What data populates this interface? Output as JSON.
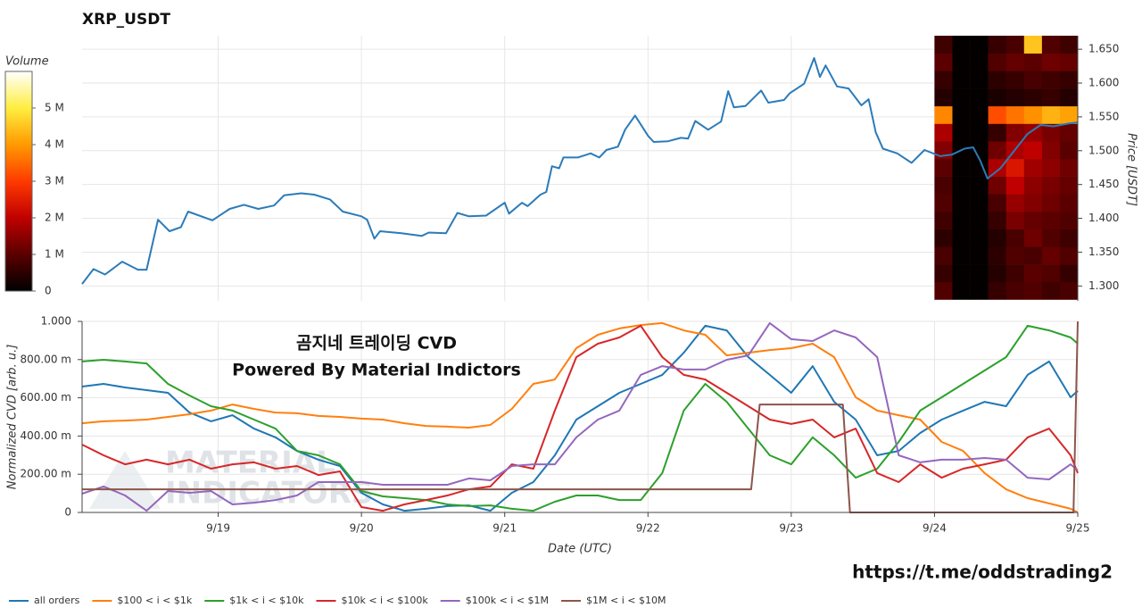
{
  "title": "XRP_USDT",
  "link": "https://t.me/oddstrading2",
  "chart_data": [
    {
      "type": "heatmap",
      "title": "Volume",
      "colorscale": [
        "#000000",
        "#5a0000",
        "#c00000",
        "#ff3a00",
        "#ff9a00",
        "#ffee40",
        "#ffffff"
      ],
      "clim": [
        0,
        6000000
      ],
      "cticks": [
        0,
        {
          "value": 1000000,
          "label": "1 M"
        },
        {
          "value": 2000000,
          "label": "2 M"
        },
        {
          "value": 3000000,
          "label": "3 M"
        },
        {
          "value": 4000000,
          "label": "4 M"
        },
        {
          "value": 5000000,
          "label": "5 M"
        }
      ],
      "x_edges": [
        6.0,
        6.125,
        6.25,
        6.375,
        6.5,
        6.625,
        6.75,
        6.875,
        7.0
      ],
      "y_edges": [
        1.28,
        1.306,
        1.332,
        1.358,
        1.384,
        1.41,
        1.436,
        1.462,
        1.488,
        1.514,
        1.54,
        1.566,
        1.592,
        1.618,
        1.644,
        1.67
      ],
      "values": [
        [
          900000,
          50000,
          50000,
          600000,
          800000,
          900000,
          700000,
          800000
        ],
        [
          600000,
          50000,
          50000,
          400000,
          700000,
          1000000,
          900000,
          600000
        ],
        [
          800000,
          50000,
          50000,
          500000,
          900000,
          800000,
          1100000,
          900000
        ],
        [
          500000,
          50000,
          50000,
          400000,
          800000,
          1200000,
          900000,
          700000
        ],
        [
          700000,
          50000,
          50000,
          600000,
          1300000,
          1100000,
          1000000,
          900000
        ],
        [
          900000,
          50000,
          50000,
          800000,
          1600000,
          1400000,
          1200000,
          1000000
        ],
        [
          800000,
          50000,
          50000,
          1200000,
          2000000,
          1500000,
          1300000,
          1100000
        ],
        [
          1000000,
          50000,
          50000,
          1800000,
          2400000,
          1700000,
          1500000,
          1200000
        ],
        [
          1400000,
          50000,
          50000,
          1200000,
          1800000,
          2000000,
          1400000,
          1000000
        ],
        [
          1800000,
          50000,
          50000,
          600000,
          1400000,
          1600000,
          1300000,
          1100000
        ],
        [
          3800000,
          50000,
          50000,
          3200000,
          3600000,
          3900000,
          4300000,
          4100000
        ],
        [
          400000,
          50000,
          50000,
          300000,
          400000,
          500000,
          600000,
          400000
        ],
        [
          600000,
          50000,
          50000,
          500000,
          600000,
          800000,
          700000,
          600000
        ],
        [
          1000000,
          50000,
          50000,
          900000,
          1100000,
          1000000,
          1200000,
          1100000
        ],
        [
          700000,
          50000,
          50000,
          600000,
          800000,
          4500000,
          900000,
          700000
        ]
      ]
    },
    {
      "type": "line",
      "y_label": "Price [USDT]",
      "color": "#2b7bb9",
      "x": [
        0.05,
        0.13,
        0.21,
        0.33,
        0.44,
        0.5,
        0.58,
        0.66,
        0.74,
        0.79,
        0.96,
        1.08,
        1.18,
        1.28,
        1.39,
        1.46,
        1.58,
        1.67,
        1.78,
        1.87,
        2.0,
        2.04,
        2.09,
        2.13,
        2.28,
        2.42,
        2.47,
        2.59,
        2.67,
        2.75,
        2.87,
        3.0,
        3.03,
        3.12,
        3.16,
        3.25,
        3.29,
        3.33,
        3.38,
        3.41,
        3.51,
        3.6,
        3.66,
        3.71,
        3.79,
        3.84,
        3.91,
        4.0,
        4.04,
        4.14,
        4.23,
        4.28,
        4.33,
        4.42,
        4.51,
        4.56,
        4.6,
        4.68,
        4.79,
        4.84,
        4.95,
        4.99,
        5.09,
        5.16,
        5.2,
        5.24,
        5.32,
        5.4,
        5.49,
        5.54,
        5.59,
        5.64,
        5.74,
        5.84,
        5.93,
        6.04,
        6.12,
        6.21,
        6.27,
        6.32,
        6.37,
        6.46,
        6.55,
        6.65,
        6.74,
        6.83,
        6.93,
        7.0
      ],
      "values": [
        1.303,
        1.325,
        1.317,
        1.336,
        1.324,
        1.324,
        1.398,
        1.381,
        1.387,
        1.41,
        1.397,
        1.414,
        1.42,
        1.414,
        1.419,
        1.434,
        1.437,
        1.435,
        1.428,
        1.41,
        1.403,
        1.398,
        1.37,
        1.381,
        1.378,
        1.374,
        1.379,
        1.378,
        1.408,
        1.403,
        1.404,
        1.423,
        1.407,
        1.423,
        1.418,
        1.435,
        1.439,
        1.477,
        1.474,
        1.49,
        1.49,
        1.496,
        1.49,
        1.501,
        1.506,
        1.531,
        1.552,
        1.522,
        1.513,
        1.514,
        1.519,
        1.518,
        1.544,
        1.531,
        1.543,
        1.588,
        1.564,
        1.566,
        1.589,
        1.571,
        1.575,
        1.585,
        1.599,
        1.637,
        1.609,
        1.626,
        1.595,
        1.592,
        1.567,
        1.576,
        1.527,
        1.503,
        1.496,
        1.482,
        1.501,
        1.492,
        1.494,
        1.503,
        1.505,
        1.485,
        1.459,
        1.474,
        1.498,
        1.525,
        1.538,
        1.536,
        1.54,
        1.542
      ],
      "xlim": [
        0.05,
        7
      ],
      "ylim": [
        1.278,
        1.67
      ],
      "yticks": [
        {
          "value": 1.3,
          "label": "1.300"
        },
        {
          "value": 1.35,
          "label": "1.350"
        },
        {
          "value": 1.4,
          "label": "1.400"
        },
        {
          "value": 1.45,
          "label": "1.450"
        },
        {
          "value": 1.5,
          "label": "1.500"
        },
        {
          "value": 1.55,
          "label": "1.550"
        },
        {
          "value": 1.6,
          "label": "1.600"
        },
        {
          "value": 1.65,
          "label": "1.650"
        }
      ],
      "grid": true,
      "y_axis_side": "right"
    },
    {
      "type": "line",
      "annotations": [
        "곰지네 트레이딩 CVD",
        "Powered By Material Indictors"
      ],
      "watermark": [
        "MATERIAL",
        "INDICATORS"
      ],
      "x_label": "Date (UTC)",
      "y_label": "Normalized CVD [arb. u.]",
      "x": [
        0.05,
        0.2,
        0.35,
        0.5,
        0.65,
        0.8,
        0.95,
        1.1,
        1.25,
        1.4,
        1.55,
        1.7,
        1.85,
        2.0,
        2.15,
        2.3,
        2.45,
        2.6,
        2.75,
        2.9,
        3.05,
        3.2,
        3.35,
        3.5,
        3.65,
        3.8,
        3.95,
        4.1,
        4.25,
        4.4,
        4.55,
        4.7,
        4.85,
        5.0,
        5.15,
        5.3,
        5.45,
        5.6,
        5.75,
        5.9,
        6.05,
        6.2,
        6.35,
        6.5,
        6.65,
        6.8,
        6.95,
        7.0
      ],
      "series": [
        {
          "name": "all orders",
          "color": "#1f77b4",
          "values": [
            0.659,
            0.673,
            0.654,
            0.64,
            0.626,
            0.523,
            0.477,
            0.509,
            0.439,
            0.393,
            0.322,
            0.276,
            0.243,
            0.103,
            0.042,
            0.009,
            0.019,
            0.033,
            0.037,
            0.009,
            0.103,
            0.159,
            0.299,
            0.486,
            0.556,
            0.626,
            0.673,
            0.72,
            0.836,
            0.977,
            0.953,
            0.813,
            0.72,
            0.626,
            0.766,
            0.579,
            0.486,
            0.299,
            0.322,
            0.416,
            0.486,
            0.533,
            0.579,
            0.556,
            0.72,
            0.79,
            0.603,
            0.636
          ]
        },
        {
          "name": "$100 < i < $1k",
          "color": "#ff7f0e",
          "values": [
            0.467,
            0.477,
            0.481,
            0.486,
            0.5,
            0.514,
            0.533,
            0.565,
            0.542,
            0.523,
            0.519,
            0.505,
            0.5,
            0.491,
            0.486,
            0.467,
            0.453,
            0.449,
            0.444,
            0.458,
            0.542,
            0.673,
            0.696,
            0.86,
            0.93,
            0.963,
            0.981,
            0.991,
            0.953,
            0.93,
            0.822,
            0.836,
            0.85,
            0.86,
            0.883,
            0.813,
            0.603,
            0.533,
            0.509,
            0.486,
            0.369,
            0.322,
            0.206,
            0.121,
            0.075,
            0.047,
            0.019,
            0
          ]
        },
        {
          "name": "$1k < i < $10k",
          "color": "#2ca02c",
          "values": [
            0.79,
            0.799,
            0.79,
            0.78,
            0.673,
            0.612,
            0.556,
            0.533,
            0.486,
            0.439,
            0.322,
            0.299,
            0.252,
            0.112,
            0.084,
            0.075,
            0.065,
            0.042,
            0.033,
            0.037,
            0.019,
            0.009,
            0.056,
            0.089,
            0.089,
            0.065,
            0.065,
            0.206,
            0.533,
            0.673,
            0.579,
            0.439,
            0.299,
            0.252,
            0.393,
            0.299,
            0.182,
            0.229,
            0.369,
            0.533,
            0.603,
            0.673,
            0.743,
            0.813,
            0.977,
            0.953,
            0.916,
            0.883
          ]
        },
        {
          "name": "$10k < i < $100k",
          "color": "#d62728",
          "values": [
            0.355,
            0.299,
            0.252,
            0.276,
            0.252,
            0.276,
            0.229,
            0.252,
            0.262,
            0.229,
            0.243,
            0.196,
            0.215,
            0.028,
            0.009,
            0.042,
            0.065,
            0.089,
            0.121,
            0.136,
            0.252,
            0.229,
            0.533,
            0.813,
            0.883,
            0.916,
            0.977,
            0.813,
            0.72,
            0.696,
            0.626,
            0.556,
            0.486,
            0.463,
            0.486,
            0.393,
            0.439,
            0.206,
            0.159,
            0.252,
            0.182,
            0.229,
            0.252,
            0.276,
            0.393,
            0.439,
            0.299,
            0.206
          ]
        },
        {
          "name": "$100k < i < $1M",
          "color": "#9467bd",
          "values": [
            0.098,
            0.136,
            0.089,
            0.009,
            0.112,
            0.103,
            0.112,
            0.042,
            0.051,
            0.065,
            0.089,
            0.159,
            0.159,
            0.159,
            0.145,
            0.145,
            0.145,
            0.145,
            0.178,
            0.168,
            0.243,
            0.252,
            0.252,
            0.393,
            0.486,
            0.533,
            0.72,
            0.766,
            0.748,
            0.748,
            0.799,
            0.822,
            0.991,
            0.907,
            0.897,
            0.953,
            0.916,
            0.813,
            0.299,
            0.262,
            0.276,
            0.276,
            0.285,
            0.276,
            0.182,
            0.173,
            0.252,
            0.22
          ]
        },
        {
          "name": "$1M < i < $10M",
          "color": "#8c564b",
          "x": [
            0.05,
            4.72,
            4.78,
            5.36,
            5.41,
            6.97,
            7.0
          ],
          "values": [
            0.121,
            0.121,
            0.565,
            0.565,
            0,
            0,
            1.0
          ]
        }
      ],
      "xlim": [
        0.05,
        7
      ],
      "ylim": [
        0,
        1
      ],
      "xticks": [
        {
          "value": 1,
          "label": "9/19"
        },
        {
          "value": 2,
          "label": "9/20"
        },
        {
          "value": 3,
          "label": "9/21"
        },
        {
          "value": 4,
          "label": "9/22"
        },
        {
          "value": 5,
          "label": "9/23"
        },
        {
          "value": 6,
          "label": "9/24"
        },
        {
          "value": 7,
          "label": "9/25"
        }
      ],
      "yticks": [
        0,
        {
          "value": 0.2,
          "label": "200.00 m"
        },
        {
          "value": 0.4,
          "label": "400.00 m"
        },
        {
          "value": 0.6,
          "label": "600.00 m"
        },
        {
          "value": 0.8,
          "label": "800.00 m"
        },
        {
          "value": 1,
          "label": "1.000"
        }
      ],
      "grid": true,
      "legend": "bottom"
    }
  ]
}
